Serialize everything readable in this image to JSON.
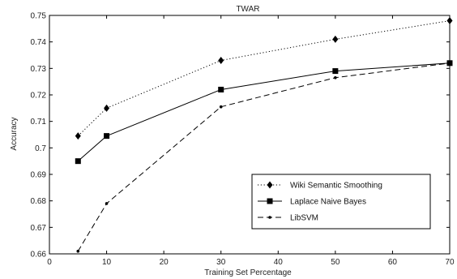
{
  "chart_data": {
    "type": "line",
    "title": "TWAR",
    "xlabel": "Training Set Percentage",
    "ylabel": "Accuracy",
    "xlim": [
      0,
      70
    ],
    "ylim": [
      0.66,
      0.75
    ],
    "x_ticks": [
      0,
      10,
      20,
      30,
      40,
      50,
      60,
      70
    ],
    "y_ticks": [
      0.66,
      0.67,
      0.68,
      0.69,
      0.7,
      0.71,
      0.72,
      0.73,
      0.74,
      0.75
    ],
    "y_tick_labels": [
      "0.66",
      "0.67",
      "0.68",
      "0.69",
      "0.7",
      "0.71",
      "0.72",
      "0.73",
      "0.74",
      "0.75"
    ],
    "grid": false,
    "legend_position": "bottom-right",
    "x": [
      5,
      10,
      30,
      50,
      70
    ],
    "series": [
      {
        "name": "Wiki Semantic Smoothing",
        "values": [
          0.7045,
          0.715,
          0.733,
          0.741,
          0.748
        ],
        "line_style": "dotted",
        "marker": "diamond",
        "color": "#000000"
      },
      {
        "name": "Laplace Naive Bayes",
        "values": [
          0.695,
          0.7045,
          0.722,
          0.729,
          0.732
        ],
        "line_style": "solid",
        "marker": "square",
        "color": "#000000"
      },
      {
        "name": "LibSVM",
        "values": [
          0.661,
          0.679,
          0.7155,
          0.7265,
          0.732
        ],
        "line_style": "dashed",
        "marker": "dot",
        "color": "#000000"
      }
    ]
  }
}
